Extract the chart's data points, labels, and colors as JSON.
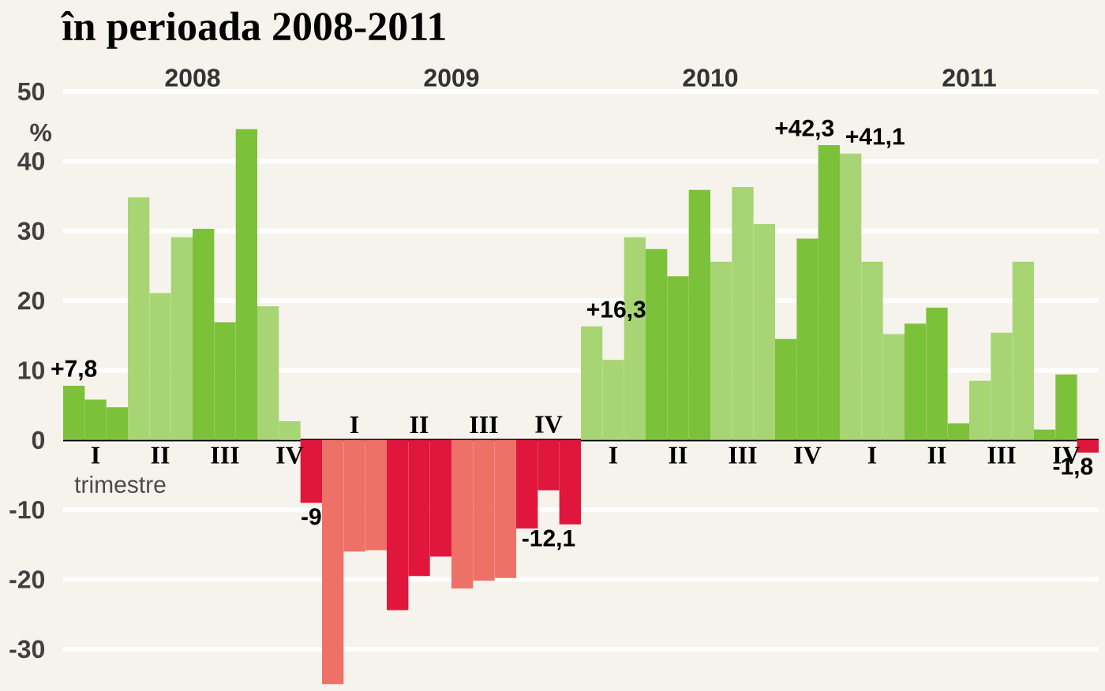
{
  "chart_data": {
    "type": "bar",
    "title": "în perioada 2008-2011",
    "ylabel": "%",
    "categories": [
      null,
      "I",
      null,
      null,
      "II",
      null,
      null,
      "III",
      null,
      null,
      "IV",
      null,
      null,
      "I",
      null,
      null,
      "II",
      null,
      null,
      "III",
      null,
      null,
      "IV",
      null,
      null,
      "I",
      null,
      null,
      "II",
      null,
      null,
      "III",
      null,
      null,
      "IV",
      null,
      null,
      "I",
      null,
      null,
      "II",
      null,
      null,
      "III",
      null,
      null,
      "IV",
      null
    ],
    "values": [
      7.8,
      5.8,
      4.7,
      34.8,
      21.1,
      29.1,
      30.3,
      16.9,
      44.6,
      19.2,
      2.7,
      -9,
      -35,
      -16,
      -15.8,
      -24.4,
      -19.5,
      -16.7,
      -21.3,
      -20.2,
      -19.8,
      -12.7,
      -7.2,
      -12.1,
      16.3,
      11.5,
      29.1,
      27.4,
      23.5,
      35.9,
      25.6,
      36.3,
      31.0,
      14.5,
      28.9,
      42.3,
      41.1,
      25.6,
      15.2,
      16.7,
      19.0,
      2.4,
      8.5,
      15.4,
      25.6,
      1.5,
      9.4,
      -1.8
    ],
    "colors": [
      "#7cc13a",
      "#7cc13a",
      "#7cc13a",
      "#a8d573",
      "#a8d573",
      "#a8d573",
      "#7cc13a",
      "#7cc13a",
      "#7cc13a",
      "#a8d573",
      "#a8d573",
      "#e0163d",
      "#ee7168",
      "#ee7168",
      "#ee7168",
      "#e0163d",
      "#e0163d",
      "#e0163d",
      "#ee7168",
      "#ee7168",
      "#ee7168",
      "#e0163d",
      "#e0163d",
      "#e0163d",
      "#a8d573",
      "#a8d573",
      "#a8d573",
      "#7cc13a",
      "#7cc13a",
      "#7cc13a",
      "#a8d573",
      "#a8d573",
      "#a8d573",
      "#7cc13a",
      "#7cc13a",
      "#7cc13a",
      "#a8d573",
      "#a8d573",
      "#a8d573",
      "#7cc13a",
      "#7cc13a",
      "#7cc13a",
      "#a8d573",
      "#a8d573",
      "#a8d573",
      "#7cc13a",
      "#7cc13a",
      "#e0163d"
    ],
    "value_labels": [
      "+7,8",
      null,
      null,
      null,
      null,
      null,
      null,
      null,
      null,
      null,
      null,
      "-9",
      null,
      null,
      null,
      null,
      null,
      null,
      null,
      null,
      null,
      null,
      null,
      "-12,1",
      "+16,3",
      null,
      null,
      null,
      null,
      null,
      null,
      null,
      null,
      null,
      null,
      "+42,3",
      "+41,1",
      null,
      null,
      null,
      null,
      null,
      null,
      null,
      null,
      null,
      null,
      "-1,8"
    ],
    "ylim": [
      -36,
      50
    ],
    "yticks": [
      -30,
      -20,
      -10,
      0,
      10,
      20,
      30,
      40,
      50
    ],
    "x2lim": [
      2007.5,
      2011.5
    ],
    "x2ticks": [
      2008,
      2009,
      2010,
      2011
    ],
    "grid": "y",
    "annotations": [
      "trimestre"
    ]
  }
}
